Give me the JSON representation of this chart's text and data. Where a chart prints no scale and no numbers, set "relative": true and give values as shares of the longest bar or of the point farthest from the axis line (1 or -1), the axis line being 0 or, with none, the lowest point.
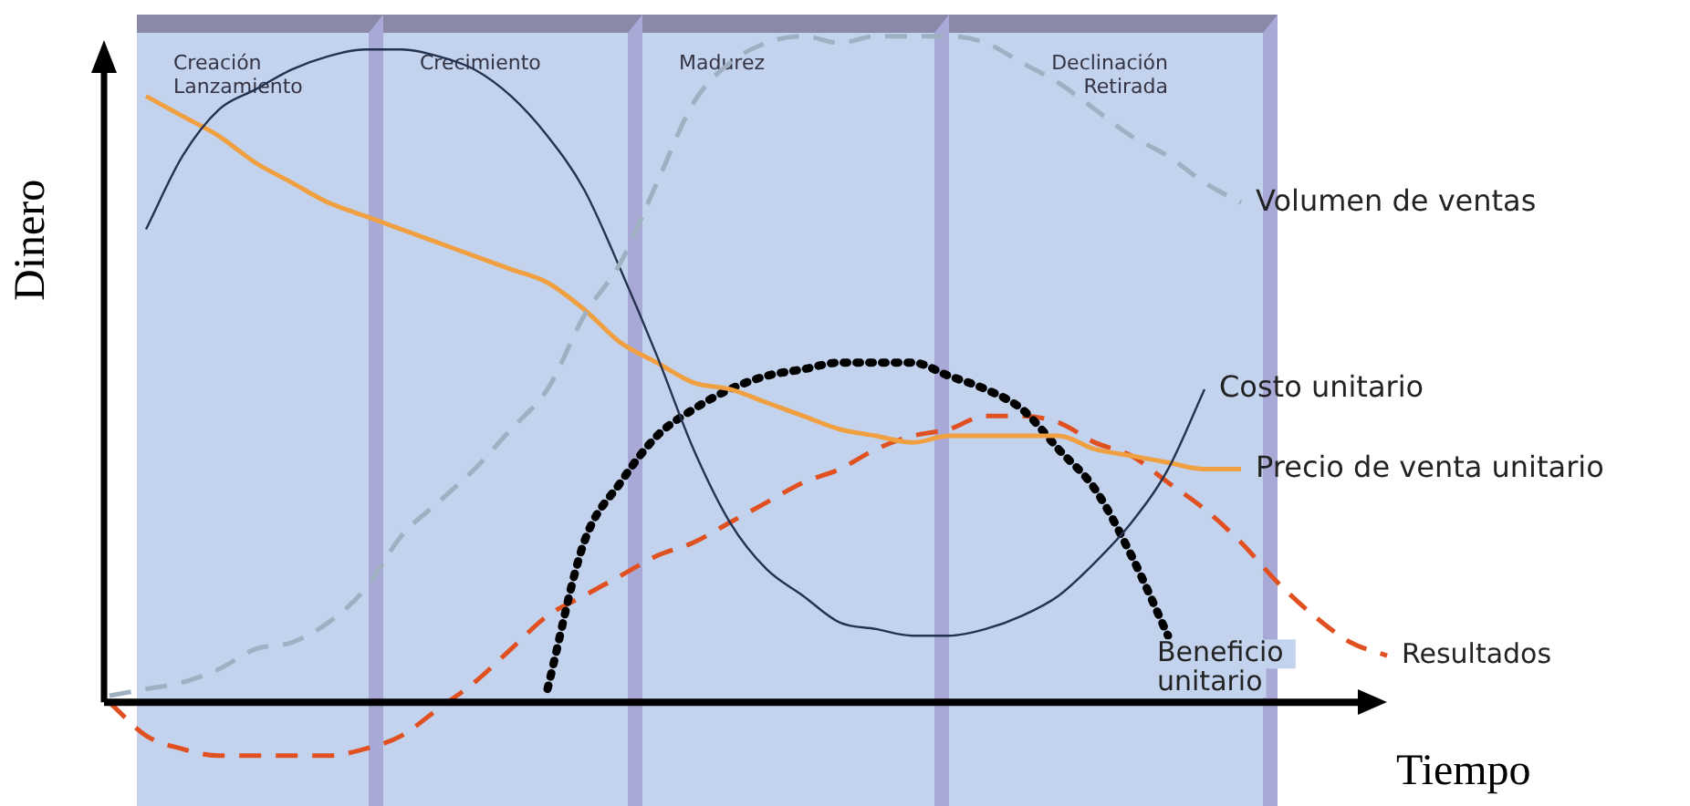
{
  "chart_data": {
    "type": "line",
    "relative": true,
    "xlabel": "Tiempo",
    "ylabel": "Dinero",
    "annotations": [
      "Creación Lanzamiento",
      "Crecimiento",
      "Madurez",
      "Declinación Retirada"
    ],
    "categories": [
      null,
      null,
      null,
      null,
      null,
      null,
      null,
      null,
      null,
      null,
      null,
      null,
      null,
      null,
      null,
      null,
      null,
      null,
      null,
      null,
      null,
      null,
      null,
      null,
      null,
      null,
      null,
      null,
      null,
      null,
      null,
      null,
      null,
      null,
      null,
      null
    ],
    "series": [
      {
        "name": "Volumen de ventas",
        "color": "#9fb0c2",
        "line_style": "dashed",
        "values": [
          0.01,
          0.02,
          0.03,
          0.05,
          0.08,
          0.09,
          0.12,
          0.17,
          0.25,
          0.3,
          0.35,
          0.41,
          0.47,
          0.58,
          0.66,
          0.78,
          0.9,
          0.96,
          0.99,
          1.0,
          0.99,
          1.0,
          1.0,
          1.0,
          0.99,
          0.96,
          0.93,
          0.89,
          0.85,
          0.82,
          0.78,
          0.75,
          null,
          null,
          null,
          null
        ]
      },
      {
        "name": "Costo unitario",
        "color": "#25324f",
        "line_style": "solid",
        "values": [
          null,
          0.71,
          0.82,
          0.89,
          0.92,
          0.95,
          0.97,
          0.98,
          0.98,
          0.97,
          0.95,
          0.91,
          0.85,
          0.77,
          0.65,
          0.52,
          0.38,
          0.27,
          0.2,
          0.16,
          0.12,
          0.11,
          0.1,
          0.1,
          0.11,
          0.13,
          0.16,
          0.21,
          0.27,
          0.35,
          0.47,
          null,
          null,
          null,
          null,
          null
        ]
      },
      {
        "name": "Precio de venta unitario",
        "color": "#f0a040",
        "line_style": "solid",
        "values": [
          null,
          0.91,
          0.88,
          0.85,
          0.81,
          0.78,
          0.75,
          0.73,
          0.71,
          0.69,
          0.67,
          0.65,
          0.63,
          0.59,
          0.54,
          0.51,
          0.48,
          0.47,
          0.45,
          0.43,
          0.41,
          0.4,
          0.39,
          0.4,
          0.4,
          0.4,
          0.4,
          0.38,
          0.37,
          0.36,
          0.35,
          0.35,
          null,
          null,
          null,
          null
        ]
      },
      {
        "name": "Beneficio unitario",
        "color": "#000000",
        "line_style": "dotted",
        "values": [
          null,
          null,
          null,
          null,
          null,
          null,
          null,
          null,
          null,
          null,
          null,
          null,
          0.02,
          0.24,
          0.33,
          0.4,
          0.44,
          0.47,
          0.49,
          0.5,
          0.51,
          0.51,
          0.51,
          0.49,
          0.47,
          0.44,
          0.38,
          0.32,
          0.22,
          0.1,
          null,
          null,
          null,
          null,
          null,
          null
        ]
      },
      {
        "name": "Resultados",
        "color": "#e05020",
        "line_style": "dashed",
        "values": [
          0,
          -0.05,
          -0.07,
          -0.08,
          -0.08,
          -0.08,
          -0.08,
          -0.07,
          -0.05,
          -0.01,
          0.03,
          0.08,
          0.13,
          0.16,
          0.19,
          0.22,
          0.24,
          0.27,
          0.3,
          0.33,
          0.35,
          0.38,
          0.4,
          0.41,
          0.43,
          0.43,
          0.42,
          0.39,
          0.37,
          0.33,
          0.29,
          0.24,
          0.18,
          0.13,
          0.09,
          0.07
        ]
      }
    ],
    "legend": false,
    "grid": false,
    "marker": "none",
    "tick_labels": false
  }
}
